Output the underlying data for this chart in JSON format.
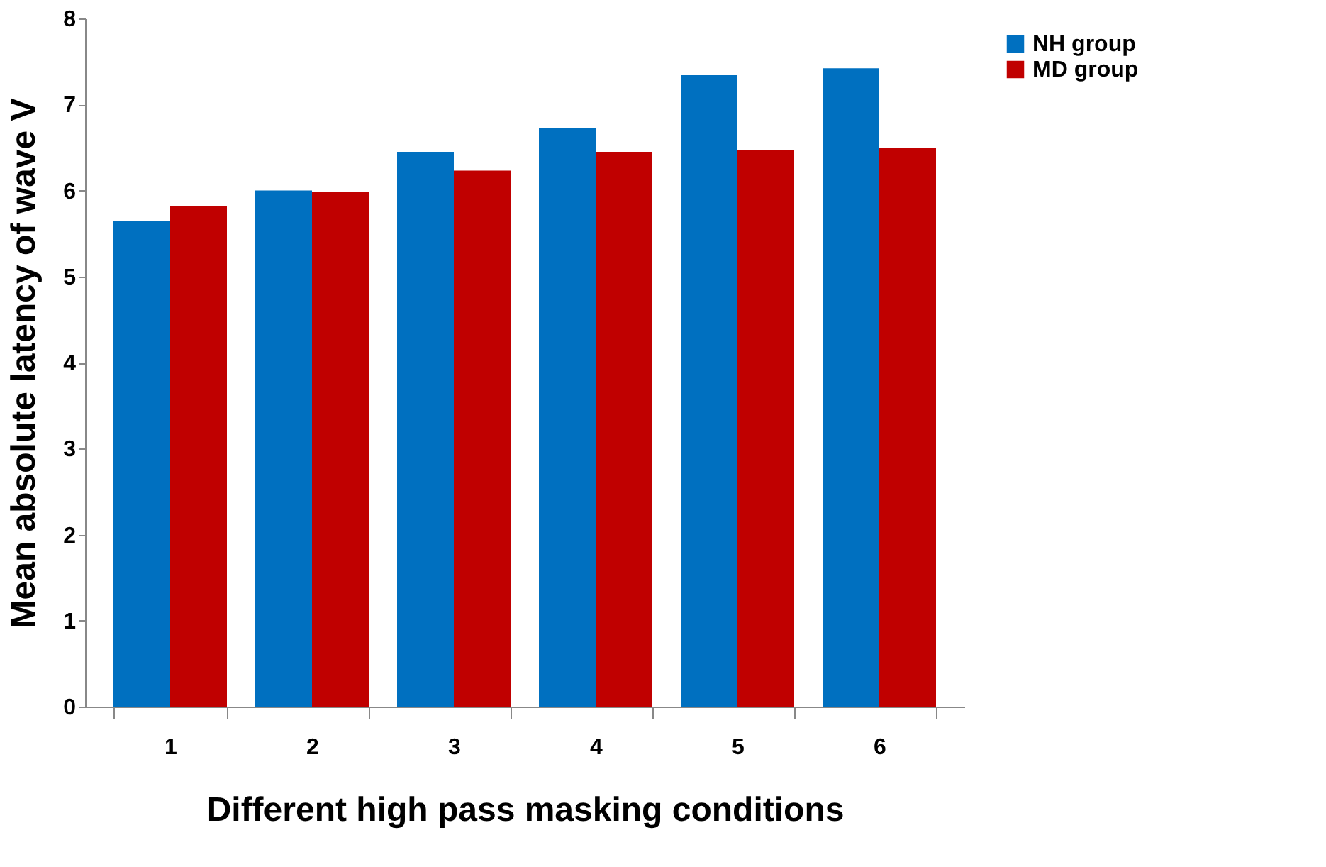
{
  "chart_data": {
    "type": "bar",
    "xlabel": "Different high pass masking conditions",
    "ylabel": "Mean absolute latency of wave V",
    "categories": [
      "1",
      "2",
      "3",
      "4",
      "5",
      "6"
    ],
    "series": [
      {
        "name": "NH group",
        "color": "#0070c0",
        "values": [
          5.65,
          6.0,
          6.45,
          6.73,
          7.34,
          7.42
        ]
      },
      {
        "name": "MD group",
        "color": "#c00000",
        "values": [
          5.82,
          5.98,
          6.23,
          6.45,
          6.47,
          6.5
        ]
      }
    ],
    "ylim": [
      0,
      8
    ],
    "yticks": [
      0,
      1,
      2,
      3,
      4,
      5,
      6,
      7,
      8
    ],
    "grid": false,
    "legend": "right"
  }
}
